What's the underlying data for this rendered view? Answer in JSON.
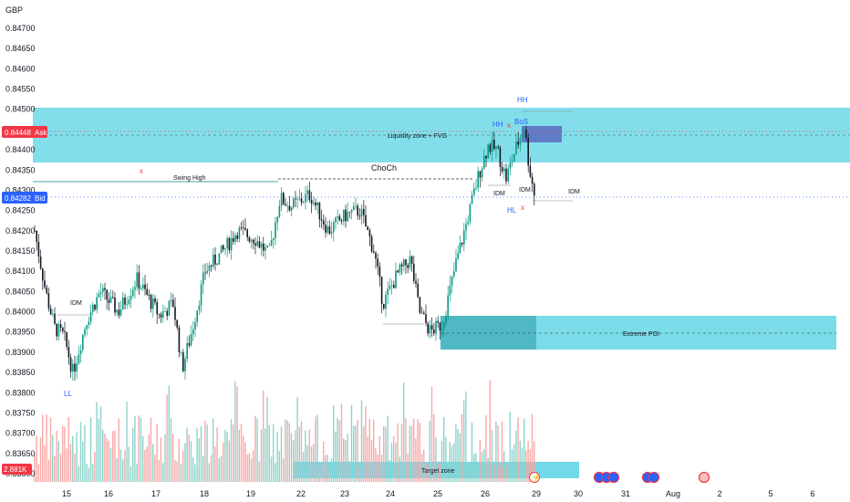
{
  "header": {
    "currency": "GBP"
  },
  "price_labels": {
    "ask_value": "0.84448",
    "ask_label": "Ask",
    "bid_value": "0.84282",
    "bid_label": "Bid",
    "volume_value": "2.881K",
    "volume_label": "K"
  },
  "colors": {
    "up": "#089981",
    "down": "#131722",
    "vol_up": "#8fd3cb",
    "vol_down": "#f7a9a7",
    "zone": "#4dd0e1",
    "ask": "#f23645",
    "bid": "#2962ff",
    "annotation_blue": "#2962ff",
    "annotation_red": "#f23645"
  },
  "annotations": {
    "liquidity_zone": "Liquidity zone + FVG",
    "extreme_poi": "Extreme POI",
    "target_zone": "Target zone",
    "swing_high": "Swing High",
    "choch": "ChoCh",
    "hh_top": "HH",
    "hh_left": "HH",
    "bos": "BoS",
    "hl": "HL",
    "ll": "LL",
    "idm_1": "IDM",
    "idm_2": "IDM",
    "idm_3": "IDM",
    "idm_4": "IDM",
    "x_1": "x",
    "x_2": "x",
    "x_3": "x"
  },
  "chart_data": {
    "type": "candlestick",
    "symbol_quote": "GBP",
    "ylim": [
      0.8358,
      0.8473
    ],
    "y_ticks": [
      "0.84700",
      "0.84650",
      "0.84600",
      "0.84550",
      "0.84500",
      "0.84450",
      "0.84400",
      "0.84350",
      "0.84300",
      "0.84250",
      "0.84200",
      "0.84150",
      "0.84100",
      "0.84050",
      "0.84000",
      "0.83950",
      "0.83900",
      "0.83850",
      "0.83800",
      "0.83750",
      "0.83700",
      "0.83650",
      "0.83600"
    ],
    "x_ticks": [
      "15",
      "16",
      "17",
      "18",
      "19",
      "22",
      "23",
      "24",
      "25",
      "26",
      "29",
      "30",
      "31",
      "Aug",
      "2",
      "5",
      "6"
    ],
    "ask": 0.84448,
    "bid": 0.84282,
    "path": [
      {
        "d": "15",
        "price": 0.842
      },
      {
        "d": "15",
        "price": 0.8398
      },
      {
        "d": "15.5",
        "price": 0.8395
      },
      {
        "d": "16",
        "price": 0.8405
      },
      {
        "d": "16.5",
        "price": 0.8402
      },
      {
        "d": "17",
        "price": 0.8408
      },
      {
        "d": "17.5",
        "price": 0.8386
      },
      {
        "d": "18",
        "price": 0.8412
      },
      {
        "d": "18.5",
        "price": 0.842
      },
      {
        "d": "19",
        "price": 0.8418
      },
      {
        "d": "19.5",
        "price": 0.841
      },
      {
        "d": "22",
        "price": 0.843
      },
      {
        "d": "22.5",
        "price": 0.8424
      },
      {
        "d": "23",
        "price": 0.8428
      },
      {
        "d": "23.5",
        "price": 0.842
      },
      {
        "d": "24",
        "price": 0.84
      },
      {
        "d": "24.5",
        "price": 0.841
      },
      {
        "d": "25",
        "price": 0.8395
      },
      {
        "d": "25.3",
        "price": 0.8398
      },
      {
        "d": "25.6",
        "price": 0.842
      },
      {
        "d": "26",
        "price": 0.8435
      },
      {
        "d": "26.5",
        "price": 0.8441
      },
      {
        "d": "26.8",
        "price": 0.8432
      },
      {
        "d": "27",
        "price": 0.8438
      },
      {
        "d": "27.2",
        "price": 0.8433
      },
      {
        "d": "27.5",
        "price": 0.8445
      },
      {
        "d": "28",
        "price": 0.8432
      },
      {
        "d": "28.2",
        "price": 0.8428
      }
    ],
    "zones": [
      {
        "name": "Liquidity zone + FVG",
        "from": 0.8437,
        "to": 0.8451
      },
      {
        "name": "Extreme POI",
        "from": 0.8391,
        "to": 0.8399
      },
      {
        "name": "Target zone"
      }
    ],
    "volume_last": "2.881K"
  }
}
